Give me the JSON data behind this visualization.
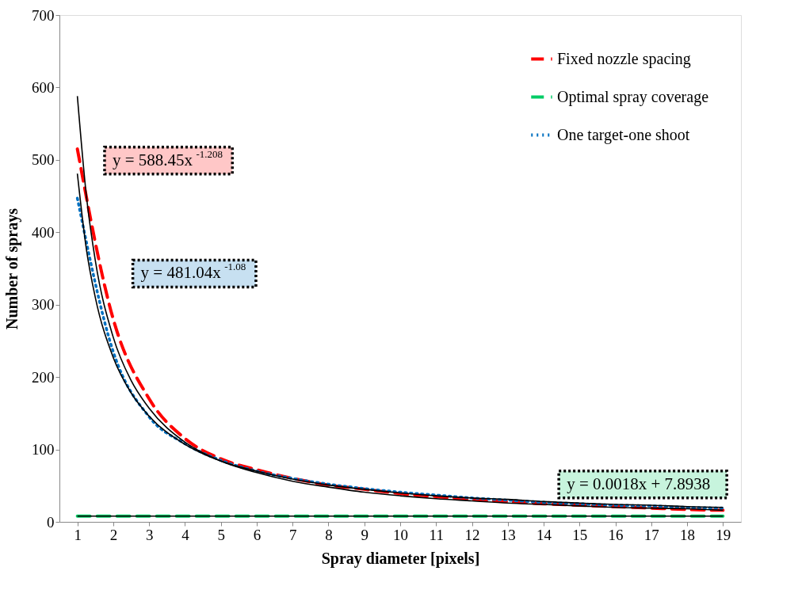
{
  "chart_data": {
    "type": "line",
    "xlabel": "Spray diameter [pixels]",
    "ylabel": "Number of sprays",
    "xlim": [
      0.5,
      19.5
    ],
    "xticks": [
      1,
      2,
      3,
      4,
      5,
      6,
      7,
      8,
      9,
      10,
      11,
      12,
      13,
      14,
      15,
      16,
      17,
      18,
      19
    ],
    "ylim": [
      0,
      700
    ],
    "yticks": [
      0,
      100,
      200,
      300,
      400,
      500,
      600,
      700
    ],
    "grid": false,
    "legend": "top right",
    "x": [
      1,
      2,
      3,
      4,
      5,
      6,
      7,
      8,
      9,
      10,
      11,
      12,
      13,
      14,
      15,
      16,
      17,
      18,
      19
    ],
    "series": [
      {
        "name": "Fixed nozzle spacing",
        "color": "#ff0000",
        "line_style": "dashed",
        "values": [
          515,
          280,
          170,
          115,
          87,
          72,
          60,
          51,
          45,
          39,
          35,
          31,
          28,
          25,
          23,
          21,
          19,
          17,
          16
        ]
      },
      {
        "name": "Optimal spray coverage",
        "color": "#00cc66",
        "line_style": "dashed",
        "values": [
          8,
          8,
          8,
          8,
          8,
          8,
          8,
          8,
          8,
          8,
          8,
          8,
          8,
          8,
          8,
          8,
          8,
          8,
          8
        ]
      },
      {
        "name": "One target-one shoot",
        "color": "#0070c0",
        "line_style": "dotted",
        "values": [
          447,
          235,
          145,
          108,
          85,
          70,
          60,
          52,
          46,
          41,
          37,
          33,
          30,
          27,
          25,
          23,
          22,
          20,
          19
        ]
      },
      {
        "type": "line",
        "color": "#000000",
        "line_style": "solid",
        "x": [
          1,
          1.25,
          1.5,
          2,
          2.5,
          3,
          4,
          5,
          6,
          7,
          8,
          9,
          10,
          11,
          12,
          13,
          14,
          15,
          16,
          17,
          18,
          19
        ],
        "values": [
          588,
          451,
          361,
          255,
          195,
          157,
          110,
          84,
          68,
          56,
          48,
          41,
          36,
          32,
          29,
          26,
          24,
          22,
          20,
          19,
          18,
          16
        ]
      },
      {
        "type": "line",
        "color": "#000000",
        "line_style": "solid",
        "x": [
          1,
          19
        ],
        "values": [
          8,
          8
        ]
      },
      {
        "type": "line",
        "color": "#000000",
        "line_style": "solid",
        "x": [
          1,
          1.25,
          1.5,
          2,
          2.5,
          3,
          4,
          5,
          6,
          7,
          8,
          9,
          10,
          11,
          12,
          13,
          14,
          15,
          16,
          17,
          18,
          19
        ],
        "values": [
          481,
          377,
          310,
          227,
          178,
          146,
          107,
          84,
          70,
          59,
          51,
          45,
          40,
          36,
          33,
          31,
          28,
          26,
          24,
          23,
          21,
          20
        ]
      }
    ],
    "annotations": [
      "y = 588.45x$^{-1.208}$",
      "y = 0.0018x + 7.8938",
      "y = 481.04x$^{-1.08}$"
    ]
  }
}
